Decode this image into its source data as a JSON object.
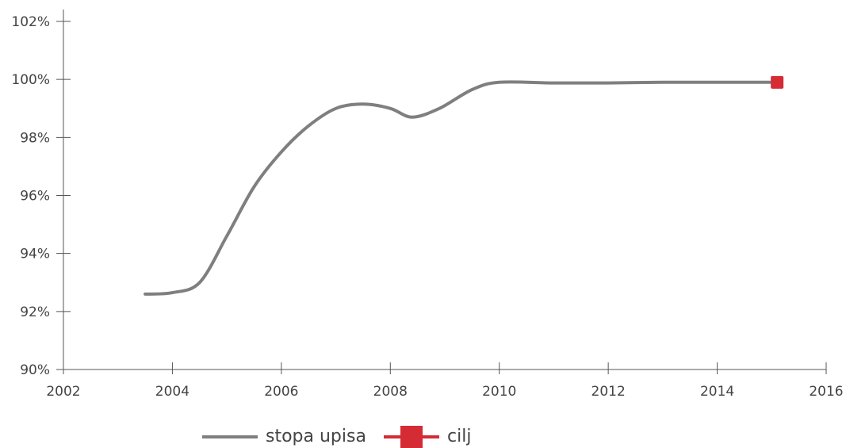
{
  "chart_data": {
    "type": "line",
    "title": "",
    "xlabel": "",
    "ylabel": "",
    "xlim": [
      2002,
      2016
    ],
    "ylim": [
      90,
      102
    ],
    "x_ticks": [
      {
        "value": 2002,
        "label": "2002"
      },
      {
        "value": 2004,
        "label": "2004"
      },
      {
        "value": 2006,
        "label": "2006"
      },
      {
        "value": 2008,
        "label": "2008"
      },
      {
        "value": 2010,
        "label": "2010"
      },
      {
        "value": 2012,
        "label": "2012"
      },
      {
        "value": 2014,
        "label": "2014"
      },
      {
        "value": 2016,
        "label": "2016"
      }
    ],
    "y_ticks": [
      {
        "value": 90,
        "label": "90%"
      },
      {
        "value": 92,
        "label": "92%"
      },
      {
        "value": 94,
        "label": "94%"
      },
      {
        "value": 96,
        "label": "96%"
      },
      {
        "value": 98,
        "label": "98%"
      },
      {
        "value": 100,
        "label": "100%"
      },
      {
        "value": 102,
        "label": "102%"
      }
    ],
    "grid": false,
    "legend_position": "bottom-center",
    "series": [
      {
        "name": "stopa upisa",
        "color": "#7f7f7f",
        "marker": "none",
        "x": [
          2003.5,
          2004,
          2004.5,
          2005,
          2005.5,
          2006,
          2006.5,
          2007,
          2007.5,
          2008,
          2008.4,
          2008.9,
          2009.5,
          2010,
          2011,
          2012,
          2013,
          2014,
          2015
        ],
        "y": [
          92.6,
          92.65,
          93.0,
          94.6,
          96.3,
          97.5,
          98.4,
          99.0,
          99.15,
          99.0,
          98.7,
          99.0,
          99.65,
          99.9,
          99.88,
          99.88,
          99.9,
          99.9,
          99.9
        ]
      },
      {
        "name": "cilj",
        "color": "#d52b35",
        "marker": "square",
        "x": [
          2015.1
        ],
        "y": [
          99.9
        ]
      }
    ]
  }
}
